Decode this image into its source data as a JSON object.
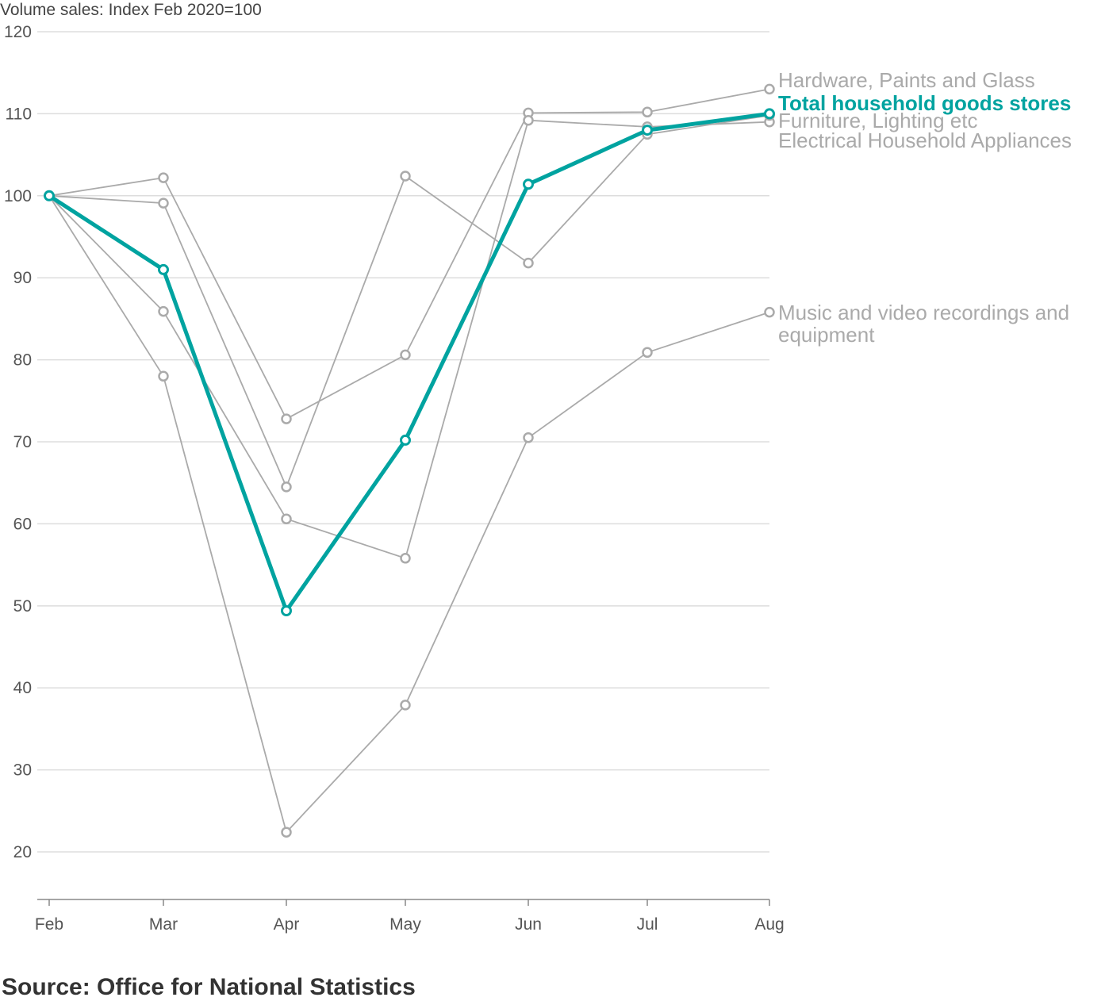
{
  "chart_data": {
    "type": "line",
    "ylabel": "Volume sales: Index Feb 2020=100",
    "categories": [
      "Feb",
      "Mar",
      "Apr",
      "May",
      "Jun",
      "Jul",
      "Aug"
    ],
    "y_ticks": [
      20,
      30,
      40,
      50,
      60,
      70,
      80,
      90,
      100,
      110,
      120
    ],
    "ylim": [
      14.2,
      120
    ],
    "grid": true,
    "series": [
      {
        "name": "Hardware, Paints and Glass",
        "label_lines": [
          "Hardware, Paints and Glass"
        ],
        "values": [
          100,
          102.2,
          72.8,
          80.6,
          110.1,
          110.2,
          113
        ],
        "color": "#aaaaaa",
        "highlight": false
      },
      {
        "name": "Furniture, Lighting etc",
        "label_lines": [
          "Furniture, Lighting etc"
        ],
        "values": [
          100,
          85.9,
          60.6,
          55.8,
          109.2,
          108.4,
          109
        ],
        "color": "#aaaaaa",
        "highlight": false
      },
      {
        "name": "Electrical Household Appliances",
        "label_lines": [
          "Electrical Household Appliances"
        ],
        "values": [
          100,
          99.1,
          64.5,
          102.4,
          91.8,
          107.5,
          109.8
        ],
        "color": "#aaaaaa",
        "highlight": false
      },
      {
        "name": "Music and video recordings and equipment",
        "label_lines": [
          "Music and video recordings and",
          "equipment"
        ],
        "values": [
          100,
          78,
          22.4,
          37.9,
          70.5,
          80.9,
          85.8
        ],
        "color": "#aaaaaa",
        "highlight": false
      },
      {
        "name": "Total household goods stores",
        "label_lines": [
          "Total household goods stores"
        ],
        "values": [
          100,
          91,
          49.4,
          70.2,
          101.4,
          108,
          110
        ],
        "color": "#00a3a0",
        "highlight": true
      }
    ]
  },
  "source": "Source: Office for National Statistics"
}
